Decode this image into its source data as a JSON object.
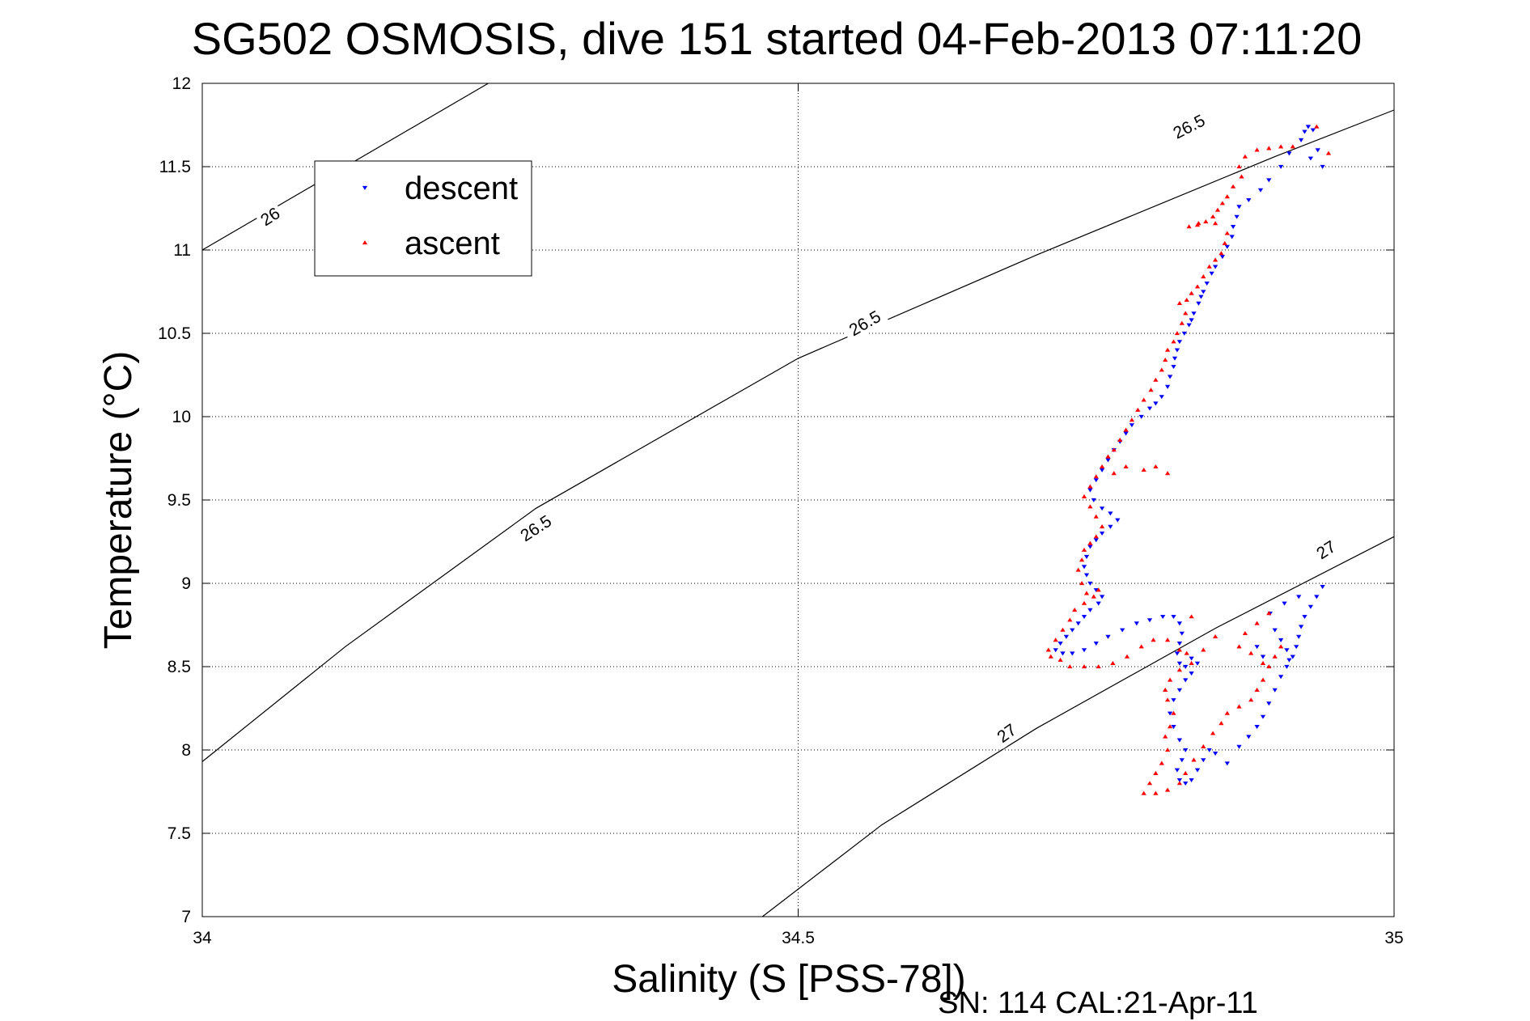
{
  "chart_data": {
    "type": "scatter",
    "title": "SG502 OSMOSIS, dive 151 started 04-Feb-2013 07:11:20",
    "xlabel": "Salinity (S [PSS-78])",
    "ylabel": "Temperature (°C)",
    "footer": "SN: 114  CAL:21-Apr-11",
    "xlim": [
      34,
      35
    ],
    "ylim": [
      7,
      12
    ],
    "xticks": [
      34,
      34.5,
      35
    ],
    "xtick_labels": [
      "34",
      "34.5",
      "35"
    ],
    "yticks": [
      7,
      7.5,
      8,
      8.5,
      9,
      9.5,
      10,
      10.5,
      11,
      11.5,
      12
    ],
    "ytick_labels": [
      "7",
      "7.5",
      "8",
      "8.5",
      "9",
      "9.5",
      "10",
      "10.5",
      "11",
      "11.5",
      "12"
    ],
    "grid": true,
    "legend_position": "top-left",
    "legend": [
      {
        "label": "descent",
        "marker": "triangle-down",
        "color": "#0000ff"
      },
      {
        "label": "ascent",
        "marker": "triangle-up",
        "color": "#ff0000"
      }
    ],
    "density_contours": [
      {
        "label": "26",
        "color": "#000000",
        "points": [
          [
            34.0,
            11.0
          ],
          [
            34.24,
            12.0
          ]
        ]
      },
      {
        "label": "26.5",
        "color": "#000000",
        "points": [
          [
            34.0,
            7.93
          ],
          [
            34.12,
            8.62
          ],
          [
            34.28,
            9.45
          ],
          [
            34.5,
            10.35
          ],
          [
            34.7,
            10.97
          ],
          [
            34.9,
            11.56
          ],
          [
            35.0,
            11.84
          ]
        ]
      },
      {
        "label": "27",
        "color": "#000000",
        "points": [
          [
            34.47,
            7.0
          ],
          [
            34.57,
            7.55
          ],
          [
            34.7,
            8.13
          ],
          [
            34.85,
            8.73
          ],
          [
            35.0,
            9.28
          ]
        ]
      }
    ],
    "contour_labels": [
      {
        "text": "26",
        "x": 34.057,
        "y": 11.2,
        "angle": -33
      },
      {
        "text": "26.5",
        "x": 34.28,
        "y": 9.33,
        "angle": -33
      },
      {
        "text": "26.5",
        "x": 34.556,
        "y": 10.56,
        "angle": -30
      },
      {
        "text": "26.5",
        "x": 34.828,
        "y": 11.74,
        "angle": -27
      },
      {
        "text": "27",
        "x": 34.675,
        "y": 8.1,
        "angle": -36
      },
      {
        "text": "27",
        "x": 34.943,
        "y": 9.2,
        "angle": -33
      }
    ],
    "series": [
      {
        "name": "descent",
        "marker": "triangle-down",
        "color": "#0000ff",
        "points": [
          [
            34.928,
            11.74
          ],
          [
            34.925,
            11.71
          ],
          [
            34.932,
            11.72
          ],
          [
            34.922,
            11.66
          ],
          [
            34.912,
            11.58
          ],
          [
            34.905,
            11.5
          ],
          [
            34.895,
            11.42
          ],
          [
            34.888,
            11.36
          ],
          [
            34.878,
            11.3
          ],
          [
            34.87,
            11.26
          ],
          [
            34.868,
            11.2
          ],
          [
            34.865,
            11.14
          ],
          [
            34.864,
            11.08
          ],
          [
            34.86,
            11.02
          ],
          [
            34.856,
            10.96
          ],
          [
            34.85,
            10.9
          ],
          [
            34.847,
            10.86
          ],
          [
            34.843,
            10.8
          ],
          [
            34.84,
            10.75
          ],
          [
            34.838,
            10.72
          ],
          [
            34.836,
            10.68
          ],
          [
            34.832,
            10.62
          ],
          [
            34.83,
            10.58
          ],
          [
            34.828,
            10.55
          ],
          [
            34.824,
            10.5
          ],
          [
            34.82,
            10.45
          ],
          [
            34.818,
            10.4
          ],
          [
            34.816,
            10.35
          ],
          [
            34.815,
            10.3
          ],
          [
            34.812,
            10.24
          ],
          [
            34.81,
            10.18
          ],
          [
            34.805,
            10.12
          ],
          [
            34.8,
            10.08
          ],
          [
            34.795,
            10.05
          ],
          [
            34.788,
            10.0
          ],
          [
            34.78,
            9.95
          ],
          [
            34.775,
            9.9
          ],
          [
            34.77,
            9.85
          ],
          [
            34.765,
            9.8
          ],
          [
            34.76,
            9.74
          ],
          [
            34.755,
            9.68
          ],
          [
            34.75,
            9.62
          ],
          [
            34.745,
            9.56
          ],
          [
            34.748,
            9.5
          ],
          [
            34.755,
            9.45
          ],
          [
            34.762,
            9.42
          ],
          [
            34.768,
            9.38
          ],
          [
            34.762,
            9.34
          ],
          [
            34.755,
            9.3
          ],
          [
            34.75,
            9.26
          ],
          [
            34.745,
            9.22
          ],
          [
            34.742,
            9.16
          ],
          [
            34.74,
            9.1
          ],
          [
            34.742,
            9.05
          ],
          [
            34.745,
            9.0
          ],
          [
            34.75,
            8.96
          ],
          [
            34.755,
            8.92
          ],
          [
            34.752,
            8.88
          ],
          [
            34.745,
            8.84
          ],
          [
            34.74,
            8.8
          ],
          [
            34.735,
            8.76
          ],
          [
            34.73,
            8.72
          ],
          [
            34.725,
            8.68
          ],
          [
            34.72,
            8.64
          ],
          [
            34.716,
            8.6
          ],
          [
            34.722,
            8.58
          ],
          [
            34.73,
            8.58
          ],
          [
            34.74,
            8.6
          ],
          [
            34.75,
            8.64
          ],
          [
            34.76,
            8.68
          ],
          [
            34.772,
            8.72
          ],
          [
            34.784,
            8.76
          ],
          [
            34.795,
            8.78
          ],
          [
            34.806,
            8.8
          ],
          [
            34.815,
            8.8
          ],
          [
            34.82,
            8.76
          ],
          [
            34.822,
            8.7
          ],
          [
            34.82,
            8.64
          ],
          [
            34.818,
            8.58
          ],
          [
            34.82,
            8.52
          ],
          [
            34.825,
            8.5
          ],
          [
            34.83,
            8.55
          ],
          [
            34.835,
            8.52
          ],
          [
            34.83,
            8.46
          ],
          [
            34.825,
            8.42
          ],
          [
            34.82,
            8.36
          ],
          [
            34.815,
            8.3
          ],
          [
            34.812,
            8.22
          ],
          [
            34.815,
            8.14
          ],
          [
            34.82,
            8.06
          ],
          [
            34.825,
            8.0
          ],
          [
            34.822,
            7.94
          ],
          [
            34.818,
            7.88
          ],
          [
            34.82,
            7.82
          ],
          [
            34.825,
            7.8
          ],
          [
            34.83,
            7.82
          ],
          [
            34.835,
            7.88
          ],
          [
            34.84,
            7.94
          ],
          [
            34.845,
            8.0
          ],
          [
            34.85,
            7.98
          ],
          [
            34.86,
            7.92
          ],
          [
            34.87,
            8.02
          ],
          [
            34.878,
            8.08
          ],
          [
            34.885,
            8.14
          ],
          [
            34.89,
            8.2
          ],
          [
            34.895,
            8.28
          ],
          [
            34.9,
            8.36
          ],
          [
            34.905,
            8.44
          ],
          [
            34.91,
            8.5
          ],
          [
            34.915,
            8.56
          ],
          [
            34.918,
            8.62
          ],
          [
            34.92,
            8.68
          ],
          [
            34.922,
            8.74
          ],
          [
            34.925,
            8.8
          ],
          [
            34.93,
            8.86
          ],
          [
            34.935,
            8.92
          ],
          [
            34.94,
            8.98
          ],
          [
            34.9,
            8.72
          ],
          [
            34.905,
            8.66
          ],
          [
            34.91,
            8.6
          ],
          [
            34.912,
            8.54
          ],
          [
            34.89,
            8.56
          ],
          [
            34.885,
            8.62
          ],
          [
            34.896,
            8.82
          ],
          [
            34.908,
            8.88
          ],
          [
            34.92,
            8.92
          ],
          [
            34.94,
            11.5
          ],
          [
            34.936,
            11.6
          ],
          [
            34.93,
            11.55
          ]
        ]
      },
      {
        "name": "ascent",
        "marker": "triangle-up",
        "color": "#ff0000",
        "points": [
          [
            34.935,
            11.74
          ],
          [
            34.945,
            11.58
          ],
          [
            34.915,
            11.62
          ],
          [
            34.905,
            11.62
          ],
          [
            34.895,
            11.61
          ],
          [
            34.885,
            11.6
          ],
          [
            34.875,
            11.56
          ],
          [
            34.87,
            11.5
          ],
          [
            34.872,
            11.44
          ],
          [
            34.865,
            11.38
          ],
          [
            34.86,
            11.32
          ],
          [
            34.856,
            11.28
          ],
          [
            34.852,
            11.24
          ],
          [
            34.848,
            11.2
          ],
          [
            34.842,
            11.17
          ],
          [
            34.835,
            11.15
          ],
          [
            34.828,
            11.14
          ],
          [
            34.836,
            11.16
          ],
          [
            34.85,
            11.16
          ],
          [
            34.86,
            11.1
          ],
          [
            34.858,
            11.04
          ],
          [
            34.855,
            10.98
          ],
          [
            34.85,
            10.94
          ],
          [
            34.845,
            10.9
          ],
          [
            34.84,
            10.84
          ],
          [
            34.835,
            10.78
          ],
          [
            34.83,
            10.74
          ],
          [
            34.826,
            10.7
          ],
          [
            34.82,
            10.68
          ],
          [
            34.825,
            10.62
          ],
          [
            34.822,
            10.56
          ],
          [
            34.818,
            10.5
          ],
          [
            34.815,
            10.45
          ],
          [
            34.81,
            10.4
          ],
          [
            34.808,
            10.34
          ],
          [
            34.805,
            10.28
          ],
          [
            34.8,
            10.22
          ],
          [
            34.796,
            10.16
          ],
          [
            34.79,
            10.1
          ],
          [
            34.785,
            10.04
          ],
          [
            34.78,
            9.98
          ],
          [
            34.775,
            9.92
          ],
          [
            34.77,
            9.86
          ],
          [
            34.765,
            9.8
          ],
          [
            34.76,
            9.76
          ],
          [
            34.755,
            9.7
          ],
          [
            34.75,
            9.64
          ],
          [
            34.745,
            9.58
          ],
          [
            34.74,
            9.52
          ],
          [
            34.745,
            9.46
          ],
          [
            34.75,
            9.4
          ],
          [
            34.755,
            9.34
          ],
          [
            34.75,
            9.28
          ],
          [
            34.745,
            9.24
          ],
          [
            34.74,
            9.2
          ],
          [
            34.738,
            9.14
          ],
          [
            34.735,
            9.08
          ],
          [
            34.738,
            9.0
          ],
          [
            34.742,
            8.94
          ],
          [
            34.748,
            8.92
          ],
          [
            34.752,
            8.96
          ],
          [
            34.74,
            8.88
          ],
          [
            34.732,
            8.84
          ],
          [
            34.728,
            8.78
          ],
          [
            34.722,
            8.72
          ],
          [
            34.716,
            8.66
          ],
          [
            34.71,
            8.6
          ],
          [
            34.712,
            8.56
          ],
          [
            34.72,
            8.54
          ],
          [
            34.728,
            8.5
          ],
          [
            34.74,
            8.5
          ],
          [
            34.752,
            8.5
          ],
          [
            34.764,
            8.52
          ],
          [
            34.776,
            8.56
          ],
          [
            34.788,
            8.62
          ],
          [
            34.798,
            8.66
          ],
          [
            34.81,
            8.66
          ],
          [
            34.82,
            8.6
          ],
          [
            34.826,
            8.58
          ],
          [
            34.83,
            8.52
          ],
          [
            34.82,
            8.48
          ],
          [
            34.812,
            8.42
          ],
          [
            34.808,
            8.36
          ],
          [
            34.81,
            8.3
          ],
          [
            34.815,
            8.22
          ],
          [
            34.812,
            8.14
          ],
          [
            34.808,
            8.08
          ],
          [
            34.81,
            8.0
          ],
          [
            34.805,
            7.92
          ],
          [
            34.8,
            7.86
          ],
          [
            34.795,
            7.8
          ],
          [
            34.79,
            7.74
          ],
          [
            34.8,
            7.74
          ],
          [
            34.81,
            7.76
          ],
          [
            34.82,
            7.8
          ],
          [
            34.825,
            7.86
          ],
          [
            34.832,
            7.94
          ],
          [
            34.84,
            8.02
          ],
          [
            34.848,
            8.1
          ],
          [
            34.855,
            8.16
          ],
          [
            34.86,
            8.22
          ],
          [
            34.87,
            8.26
          ],
          [
            34.88,
            8.3
          ],
          [
            34.885,
            8.36
          ],
          [
            34.89,
            8.42
          ],
          [
            34.895,
            8.5
          ],
          [
            34.9,
            8.56
          ],
          [
            34.905,
            8.62
          ],
          [
            34.87,
            8.62
          ],
          [
            34.88,
            8.58
          ],
          [
            34.89,
            8.52
          ],
          [
            34.875,
            8.7
          ],
          [
            34.885,
            8.76
          ],
          [
            34.895,
            8.82
          ],
          [
            34.85,
            8.68
          ],
          [
            34.84,
            8.6
          ],
          [
            34.83,
            8.8
          ],
          [
            34.8,
            9.7
          ],
          [
            34.81,
            9.66
          ],
          [
            34.79,
            9.68
          ],
          [
            34.775,
            9.7
          ],
          [
            34.765,
            9.66
          ]
        ]
      }
    ]
  }
}
